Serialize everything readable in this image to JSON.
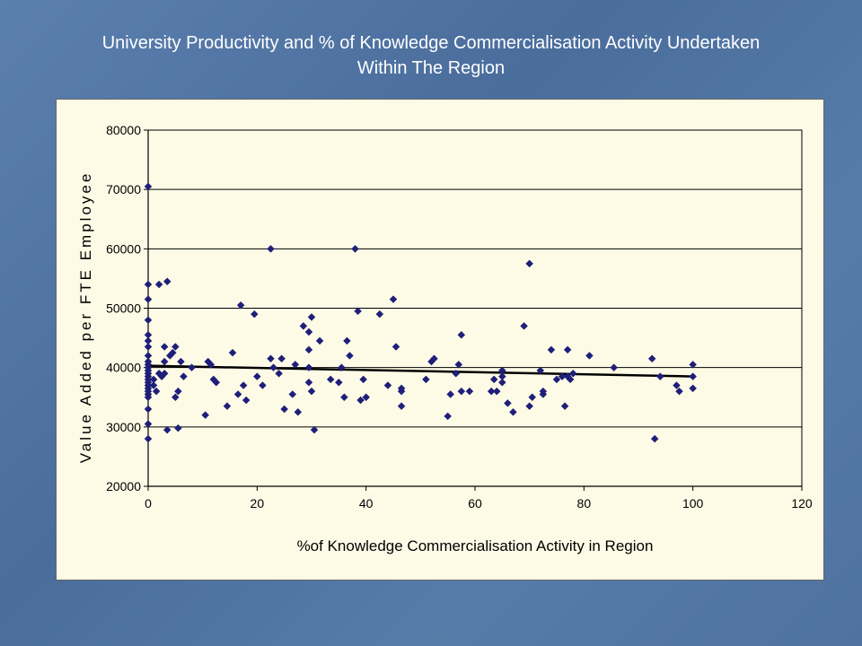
{
  "slide": {
    "title_line1": "University Productivity and % of Knowledge Commercialisation Activity Undertaken",
    "title_line2": "Within The Region"
  },
  "chart_data": {
    "type": "scatter",
    "xlabel": "%of Knowledge Commercialisation Activity in Region",
    "ylabel": "Value Added per FTE Employee",
    "xlim": [
      0,
      120
    ],
    "ylim": [
      20000,
      80000
    ],
    "xticks": [
      0,
      20,
      40,
      60,
      80,
      100,
      120
    ],
    "yticks": [
      20000,
      30000,
      40000,
      50000,
      60000,
      70000,
      80000
    ],
    "grid": "horizontal",
    "legend": "none",
    "marker_color": "#1f1f7a",
    "trendline_color": "#000000",
    "trendline": [
      [
        0,
        40300
      ],
      [
        100,
        38500
      ]
    ],
    "points": [
      [
        0,
        70500
      ],
      [
        0,
        54000
      ],
      [
        0,
        51500
      ],
      [
        0,
        48000
      ],
      [
        0,
        45500
      ],
      [
        0,
        44500
      ],
      [
        0,
        43500
      ],
      [
        0,
        42000
      ],
      [
        0,
        41000
      ],
      [
        0,
        40500
      ],
      [
        0,
        40000
      ],
      [
        0,
        39500
      ],
      [
        0,
        39000
      ],
      [
        0,
        38500
      ],
      [
        0,
        38000
      ],
      [
        0,
        37500
      ],
      [
        0,
        37000
      ],
      [
        0,
        36500
      ],
      [
        0,
        36000
      ],
      [
        0,
        35500
      ],
      [
        0,
        35000
      ],
      [
        0,
        33000
      ],
      [
        0,
        30500
      ],
      [
        0,
        28000
      ],
      [
        1,
        38000
      ],
      [
        1,
        37000
      ],
      [
        1.5,
        36000
      ],
      [
        2,
        54000
      ],
      [
        2,
        39000
      ],
      [
        2.5,
        38500
      ],
      [
        3,
        43500
      ],
      [
        3,
        41000
      ],
      [
        3,
        39000
      ],
      [
        3.5,
        54500
      ],
      [
        3.5,
        29500
      ],
      [
        4,
        42000
      ],
      [
        4.5,
        42500
      ],
      [
        5,
        43500
      ],
      [
        5,
        35000
      ],
      [
        5.5,
        36000
      ],
      [
        5.5,
        29800
      ],
      [
        6,
        41000
      ],
      [
        6.5,
        38500
      ],
      [
        8,
        40000
      ],
      [
        10.5,
        32000
      ],
      [
        11,
        41000
      ],
      [
        11.5,
        40500
      ],
      [
        12,
        38000
      ],
      [
        12.5,
        37500
      ],
      [
        14.5,
        33500
      ],
      [
        15.5,
        42500
      ],
      [
        16.5,
        35500
      ],
      [
        17,
        50500
      ],
      [
        17.5,
        37000
      ],
      [
        18,
        34500
      ],
      [
        19.5,
        49000
      ],
      [
        20,
        38500
      ],
      [
        21,
        37000
      ],
      [
        22.5,
        60000
      ],
      [
        22.5,
        41500
      ],
      [
        23,
        40000
      ],
      [
        24,
        39000
      ],
      [
        24.5,
        41500
      ],
      [
        25,
        33000
      ],
      [
        26.5,
        35500
      ],
      [
        27,
        40500
      ],
      [
        27.5,
        32500
      ],
      [
        28.5,
        47000
      ],
      [
        29.5,
        46000
      ],
      [
        29.5,
        43000
      ],
      [
        29.5,
        40000
      ],
      [
        29.5,
        37500
      ],
      [
        30,
        36000
      ],
      [
        30,
        48500
      ],
      [
        30.5,
        29500
      ],
      [
        31.5,
        44500
      ],
      [
        33.5,
        38000
      ],
      [
        35,
        37500
      ],
      [
        35.5,
        40000
      ],
      [
        36,
        35000
      ],
      [
        36.5,
        44500
      ],
      [
        37,
        42000
      ],
      [
        38,
        60000
      ],
      [
        38.5,
        49500
      ],
      [
        39,
        34500
      ],
      [
        39.5,
        38000
      ],
      [
        40,
        35000
      ],
      [
        42.5,
        49000
      ],
      [
        44,
        37000
      ],
      [
        45,
        51500
      ],
      [
        45.5,
        43500
      ],
      [
        46.5,
        36500
      ],
      [
        46.5,
        33500
      ],
      [
        46.5,
        36000
      ],
      [
        51,
        38000
      ],
      [
        52,
        41000
      ],
      [
        52.5,
        41500
      ],
      [
        55,
        31800
      ],
      [
        55.5,
        35500
      ],
      [
        56.5,
        39000
      ],
      [
        57,
        40500
      ],
      [
        57.5,
        36000
      ],
      [
        57.5,
        45500
      ],
      [
        59,
        36000
      ],
      [
        63,
        36000
      ],
      [
        63.5,
        38000
      ],
      [
        64,
        36000
      ],
      [
        65,
        39500
      ],
      [
        65,
        38500
      ],
      [
        65,
        37500
      ],
      [
        66,
        34000
      ],
      [
        67,
        32500
      ],
      [
        69,
        47000
      ],
      [
        70,
        33500
      ],
      [
        70,
        57500
      ],
      [
        70.5,
        35000
      ],
      [
        72,
        39500
      ],
      [
        72.5,
        36000
      ],
      [
        72.5,
        35500
      ],
      [
        74,
        43000
      ],
      [
        75,
        38000
      ],
      [
        76,
        38500
      ],
      [
        76.5,
        33500
      ],
      [
        77,
        43000
      ],
      [
        77,
        38500
      ],
      [
        77.5,
        38000
      ],
      [
        78,
        39000
      ],
      [
        81,
        42000
      ],
      [
        85.5,
        40000
      ],
      [
        92.5,
        41500
      ],
      [
        93,
        28000
      ],
      [
        94,
        38500
      ],
      [
        97,
        37000
      ],
      [
        97.5,
        36000
      ],
      [
        100,
        40500
      ],
      [
        100,
        38500
      ],
      [
        100,
        36500
      ]
    ]
  }
}
